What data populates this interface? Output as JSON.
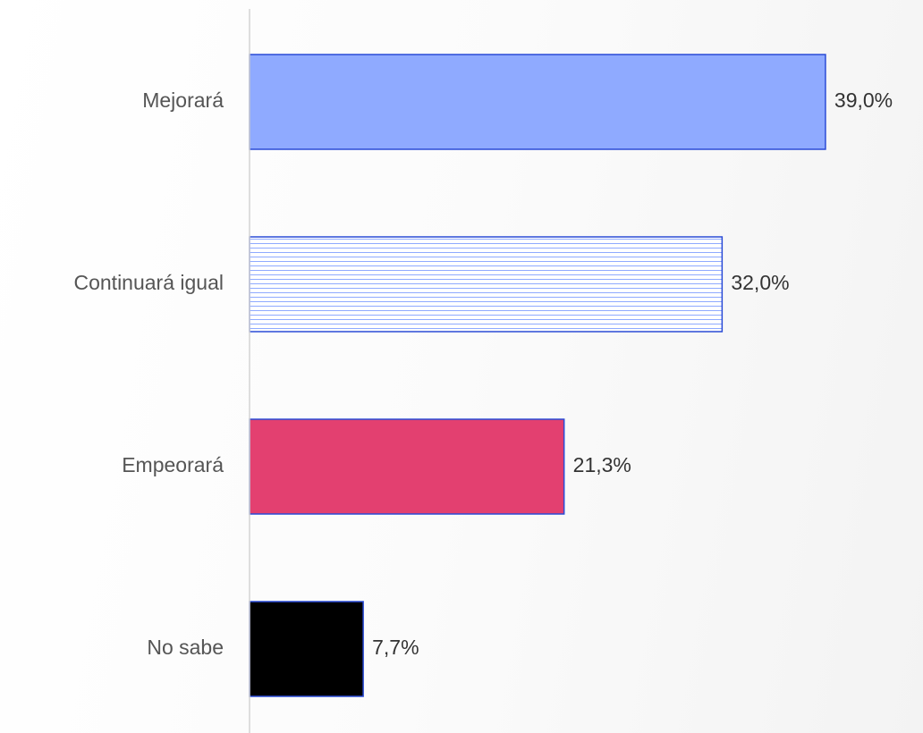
{
  "chart_data": {
    "type": "barh",
    "categories": [
      "Mejorará",
      "Continuará igual",
      "Empeorará",
      "No sabe"
    ],
    "values": [
      39.0,
      32.0,
      21.3,
      7.7
    ],
    "value_labels": [
      "39,0%",
      "32,0%",
      "21,3%",
      "7,7%"
    ],
    "colors": [
      "#8faaff",
      "#ffffff",
      "#e34070",
      "#000000"
    ],
    "hatches": [
      "none",
      "horizontal",
      "none",
      "none"
    ],
    "hatch_color": "#8faaff",
    "edge_color": "#2a4bd6",
    "xlim": [
      0,
      45
    ]
  }
}
